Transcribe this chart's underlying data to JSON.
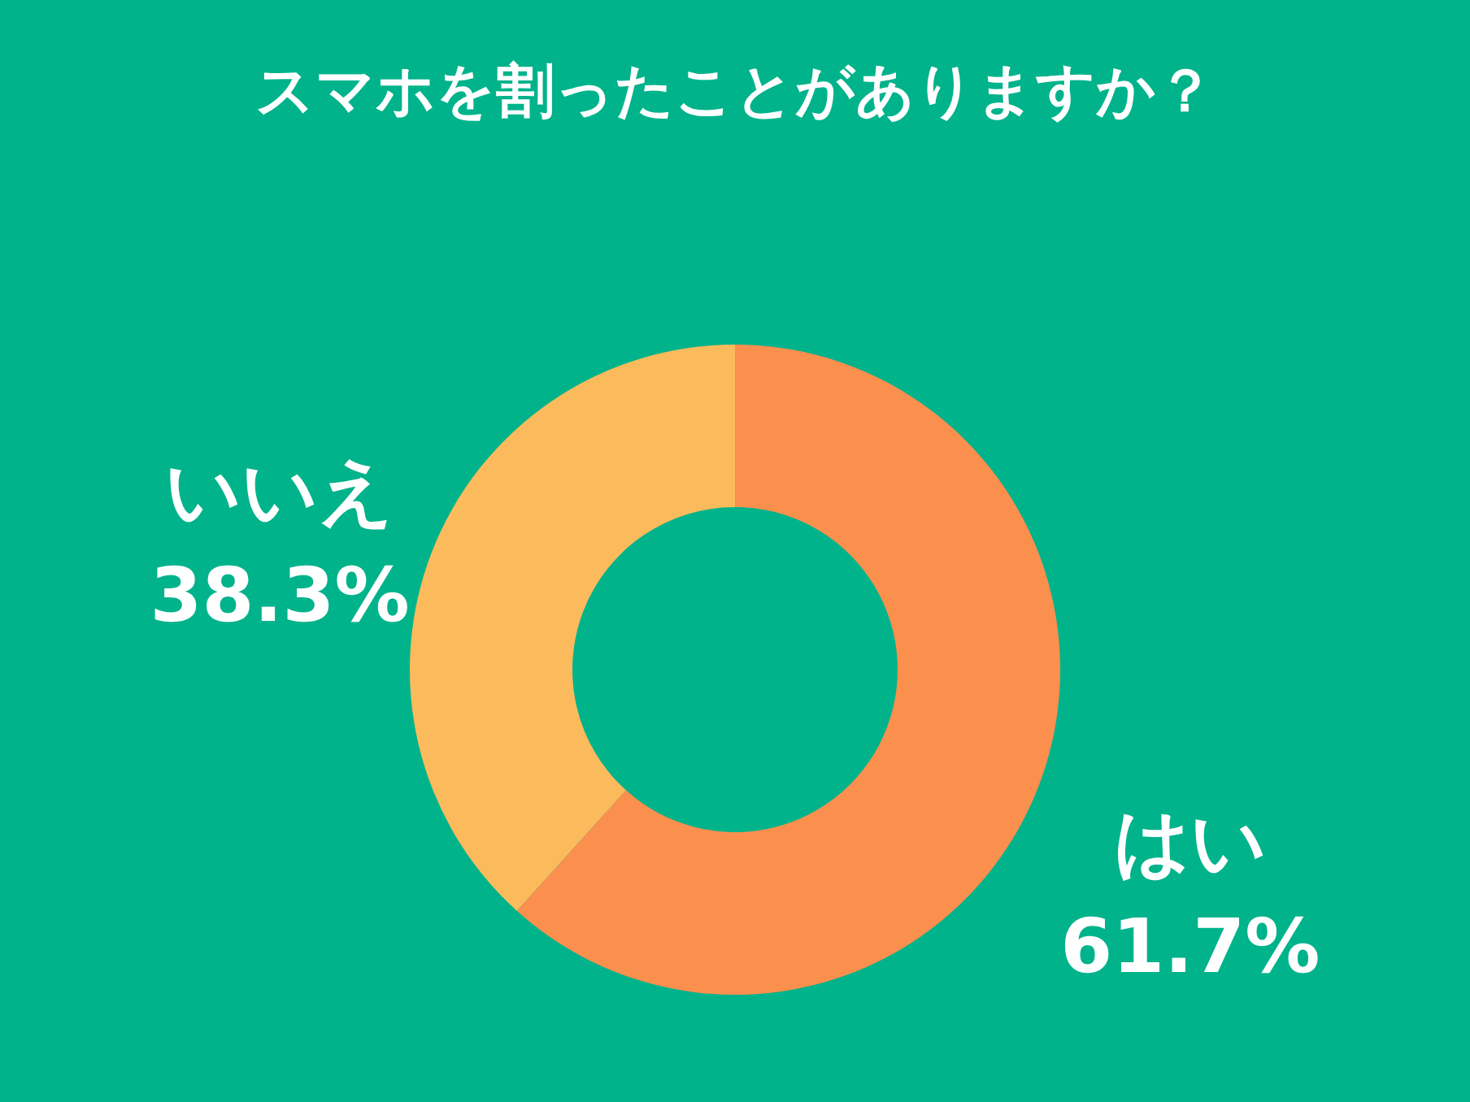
{
  "chart_data": {
    "type": "donut",
    "title": "スマホを割ったことがありますか？",
    "categories": [
      "はい",
      "いいえ"
    ],
    "values": [
      61.7,
      38.3
    ],
    "value_labels": [
      "61.7%",
      "38.3%"
    ],
    "colors": [
      "#fb8f4e",
      "#fbbb5c"
    ]
  }
}
